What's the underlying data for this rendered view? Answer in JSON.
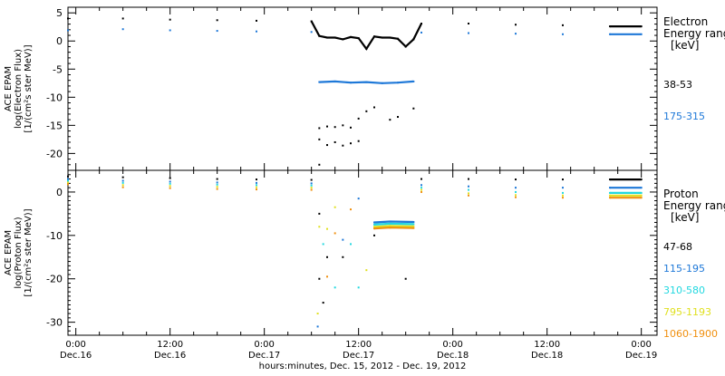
{
  "x_axis": {
    "label": "hours:minutes, Dec. 15, 2012 - Dec. 19, 2012",
    "ticks": [
      {
        "t": 0,
        "time": "0:00",
        "date": "Dec.16"
      },
      {
        "t": 12,
        "time": "12:00",
        "date": "Dec.16"
      },
      {
        "t": 24,
        "time": "0:00",
        "date": "Dec.17"
      },
      {
        "t": 36,
        "time": "12:00",
        "date": "Dec.17"
      },
      {
        "t": 48,
        "time": "0:00",
        "date": "Dec.18"
      },
      {
        "t": 60,
        "time": "12:00",
        "date": "Dec.18"
      },
      {
        "t": 72,
        "time": "0:00",
        "date": "Dec.19"
      }
    ]
  },
  "colors": {
    "black": "#000000",
    "blue": "#1e78d8",
    "cyan": "#22d8e0",
    "yellow": "#e0e020",
    "orange": "#f09010"
  },
  "chart_data": [
    {
      "type": "scatter",
      "ylabel_lines": [
        "ACE EPAM",
        "log(Electron Flux)",
        "[1/(cm²s ster MeV)]"
      ],
      "ylim": [
        -23,
        6
      ],
      "yticks": [
        5,
        0,
        -5,
        -10,
        -15,
        -20
      ],
      "legend_title_lines": [
        "Electron",
        "Energy ranges",
        "[keV]"
      ],
      "series": [
        {
          "name": "38-53",
          "color": "#000000",
          "points": [
            [
              -1,
              4.0
            ],
            [
              6,
              4.0
            ],
            [
              12,
              3.8
            ],
            [
              18,
              3.7
            ],
            [
              23,
              3.6
            ],
            [
              30,
              3.5
            ],
            [
              31,
              0.9
            ],
            [
              32,
              0.6
            ],
            [
              33,
              0.6
            ],
            [
              34,
              0.3
            ],
            [
              35,
              0.7
            ],
            [
              36,
              0.5
            ],
            [
              37,
              -1.4
            ],
            [
              38,
              0.8
            ],
            [
              39,
              0.6
            ],
            [
              40,
              0.6
            ],
            [
              41,
              0.4
            ],
            [
              42,
              -1.0
            ],
            [
              43,
              0.3
            ],
            [
              44,
              3.1
            ],
            [
              50,
              3.1
            ],
            [
              56,
              2.9
            ],
            [
              62,
              2.8
            ],
            [
              68,
              2.6
            ],
            [
              72,
              2.6
            ]
          ]
        },
        {
          "name": "175-315",
          "color": "#1e78d8",
          "points": [
            [
              -1,
              1.9
            ],
            [
              6,
              2.1
            ],
            [
              12,
              1.9
            ],
            [
              18,
              1.8
            ],
            [
              23,
              1.7
            ],
            [
              30,
              1.6
            ],
            [
              31,
              -7.3
            ],
            [
              33,
              -7.2
            ],
            [
              35,
              -7.4
            ],
            [
              37,
              -7.3
            ],
            [
              39,
              -7.5
            ],
            [
              41,
              -7.4
            ],
            [
              43,
              -7.2
            ],
            [
              44,
              1.5
            ],
            [
              50,
              1.4
            ],
            [
              56,
              1.3
            ],
            [
              62,
              1.2
            ],
            [
              68,
              1.2
            ],
            [
              72,
              1.2
            ]
          ]
        }
      ],
      "scattered": [
        [
          31,
          -15.5
        ],
        [
          32,
          -15.2
        ],
        [
          33,
          -15.3
        ],
        [
          34,
          -15.0
        ],
        [
          31,
          -17.5
        ],
        [
          32,
          -18.5
        ],
        [
          33,
          -18.0
        ],
        [
          34,
          -18.6
        ],
        [
          35,
          -18.2
        ],
        [
          36,
          -17.8
        ],
        [
          31,
          -22.0
        ],
        [
          37,
          -12.5
        ],
        [
          38,
          -11.8
        ],
        [
          40,
          -14.0
        ],
        [
          41,
          -13.5
        ],
        [
          43,
          -12.0
        ],
        [
          35,
          -15.4
        ],
        [
          36,
          -13.8
        ]
      ]
    },
    {
      "type": "scatter",
      "ylabel_lines": [
        "ACE EPAM",
        "log(Proton Flux)",
        "[1/(cm²s ster MeV)]"
      ],
      "ylim": [
        -33,
        5
      ],
      "yticks": [
        0,
        -10,
        -20,
        -30
      ],
      "legend_title_lines": [
        "Proton",
        "Energy ranges",
        "[keV]"
      ],
      "series": [
        {
          "name": "47-68",
          "color": "#000000",
          "points": [
            [
              -1,
              3.6
            ],
            [
              6,
              3.4
            ],
            [
              12,
              3.2
            ],
            [
              18,
              3.0
            ],
            [
              23,
              2.9
            ],
            [
              30,
              2.8
            ],
            [
              44,
              3.0
            ],
            [
              50,
              3.0
            ],
            [
              56,
              2.9
            ],
            [
              62,
              2.9
            ],
            [
              68,
              2.9
            ],
            [
              72,
              2.9
            ]
          ]
        },
        {
          "name": "115-195",
          "color": "#1e78d8",
          "points": [
            [
              -1,
              3.0
            ],
            [
              6,
              2.6
            ],
            [
              12,
              2.4
            ],
            [
              18,
              2.2
            ],
            [
              23,
              2.1
            ],
            [
              30,
              2.0
            ],
            [
              38,
              -7.0
            ],
            [
              40,
              -6.8
            ],
            [
              43,
              -6.9
            ],
            [
              44,
              1.6
            ],
            [
              50,
              1.3
            ],
            [
              56,
              1.0
            ],
            [
              62,
              1.0
            ],
            [
              68,
              1.0
            ],
            [
              72,
              1.0
            ]
          ]
        },
        {
          "name": "310-580",
          "color": "#22d8e0",
          "points": [
            [
              -1,
              2.6
            ],
            [
              6,
              2.1
            ],
            [
              12,
              1.9
            ],
            [
              18,
              1.7
            ],
            [
              23,
              1.6
            ],
            [
              30,
              1.5
            ],
            [
              38,
              -7.5
            ],
            [
              40,
              -7.3
            ],
            [
              43,
              -7.4
            ],
            [
              44,
              1.0
            ],
            [
              50,
              0.5
            ],
            [
              56,
              0.0
            ],
            [
              62,
              -0.2
            ],
            [
              68,
              -0.2
            ],
            [
              72,
              -0.2
            ]
          ]
        },
        {
          "name": "795-1193",
          "color": "#e0e020",
          "points": [
            [
              -1,
              2.2
            ],
            [
              6,
              1.6
            ],
            [
              12,
              1.4
            ],
            [
              18,
              1.2
            ],
            [
              23,
              1.1
            ],
            [
              30,
              1.0
            ],
            [
              38,
              -8.0
            ],
            [
              40,
              -7.8
            ],
            [
              43,
              -7.9
            ],
            [
              44,
              0.5
            ],
            [
              50,
              -0.3
            ],
            [
              56,
              -0.7
            ],
            [
              62,
              -0.8
            ],
            [
              68,
              -0.8
            ],
            [
              72,
              -0.8
            ]
          ]
        },
        {
          "name": "1060-1900",
          "color": "#f09010",
          "points": [
            [
              -1,
              1.8
            ],
            [
              6,
              1.1
            ],
            [
              12,
              0.9
            ],
            [
              18,
              0.7
            ],
            [
              23,
              0.6
            ],
            [
              30,
              0.5
            ],
            [
              38,
              -8.4
            ],
            [
              40,
              -8.2
            ],
            [
              43,
              -8.3
            ],
            [
              44,
              0.0
            ],
            [
              50,
              -0.8
            ],
            [
              56,
              -1.2
            ],
            [
              62,
              -1.3
            ],
            [
              68,
              -1.3
            ],
            [
              72,
              -1.3
            ]
          ]
        }
      ],
      "scattered": [
        [
          31,
          -8.0
        ],
        [
          31.5,
          -12.0
        ],
        [
          32,
          -8.5
        ],
        [
          33,
          -9.5
        ],
        [
          34,
          -11.0
        ],
        [
          35,
          -12.0
        ],
        [
          31,
          -20.0
        ],
        [
          32,
          -19.5
        ],
        [
          31.5,
          -25.5
        ],
        [
          30.8,
          -28.0
        ],
        [
          33,
          -3.5
        ],
        [
          36,
          -22.0
        ],
        [
          34,
          -15.0
        ],
        [
          35,
          -4.0
        ],
        [
          36,
          -1.5
        ],
        [
          37,
          -18.0
        ],
        [
          38,
          -10.0
        ],
        [
          32,
          -15.0
        ],
        [
          31,
          -5.0
        ],
        [
          30.8,
          -31.0
        ],
        [
          33,
          -22.0
        ],
        [
          42,
          -20.0
        ]
      ]
    }
  ]
}
